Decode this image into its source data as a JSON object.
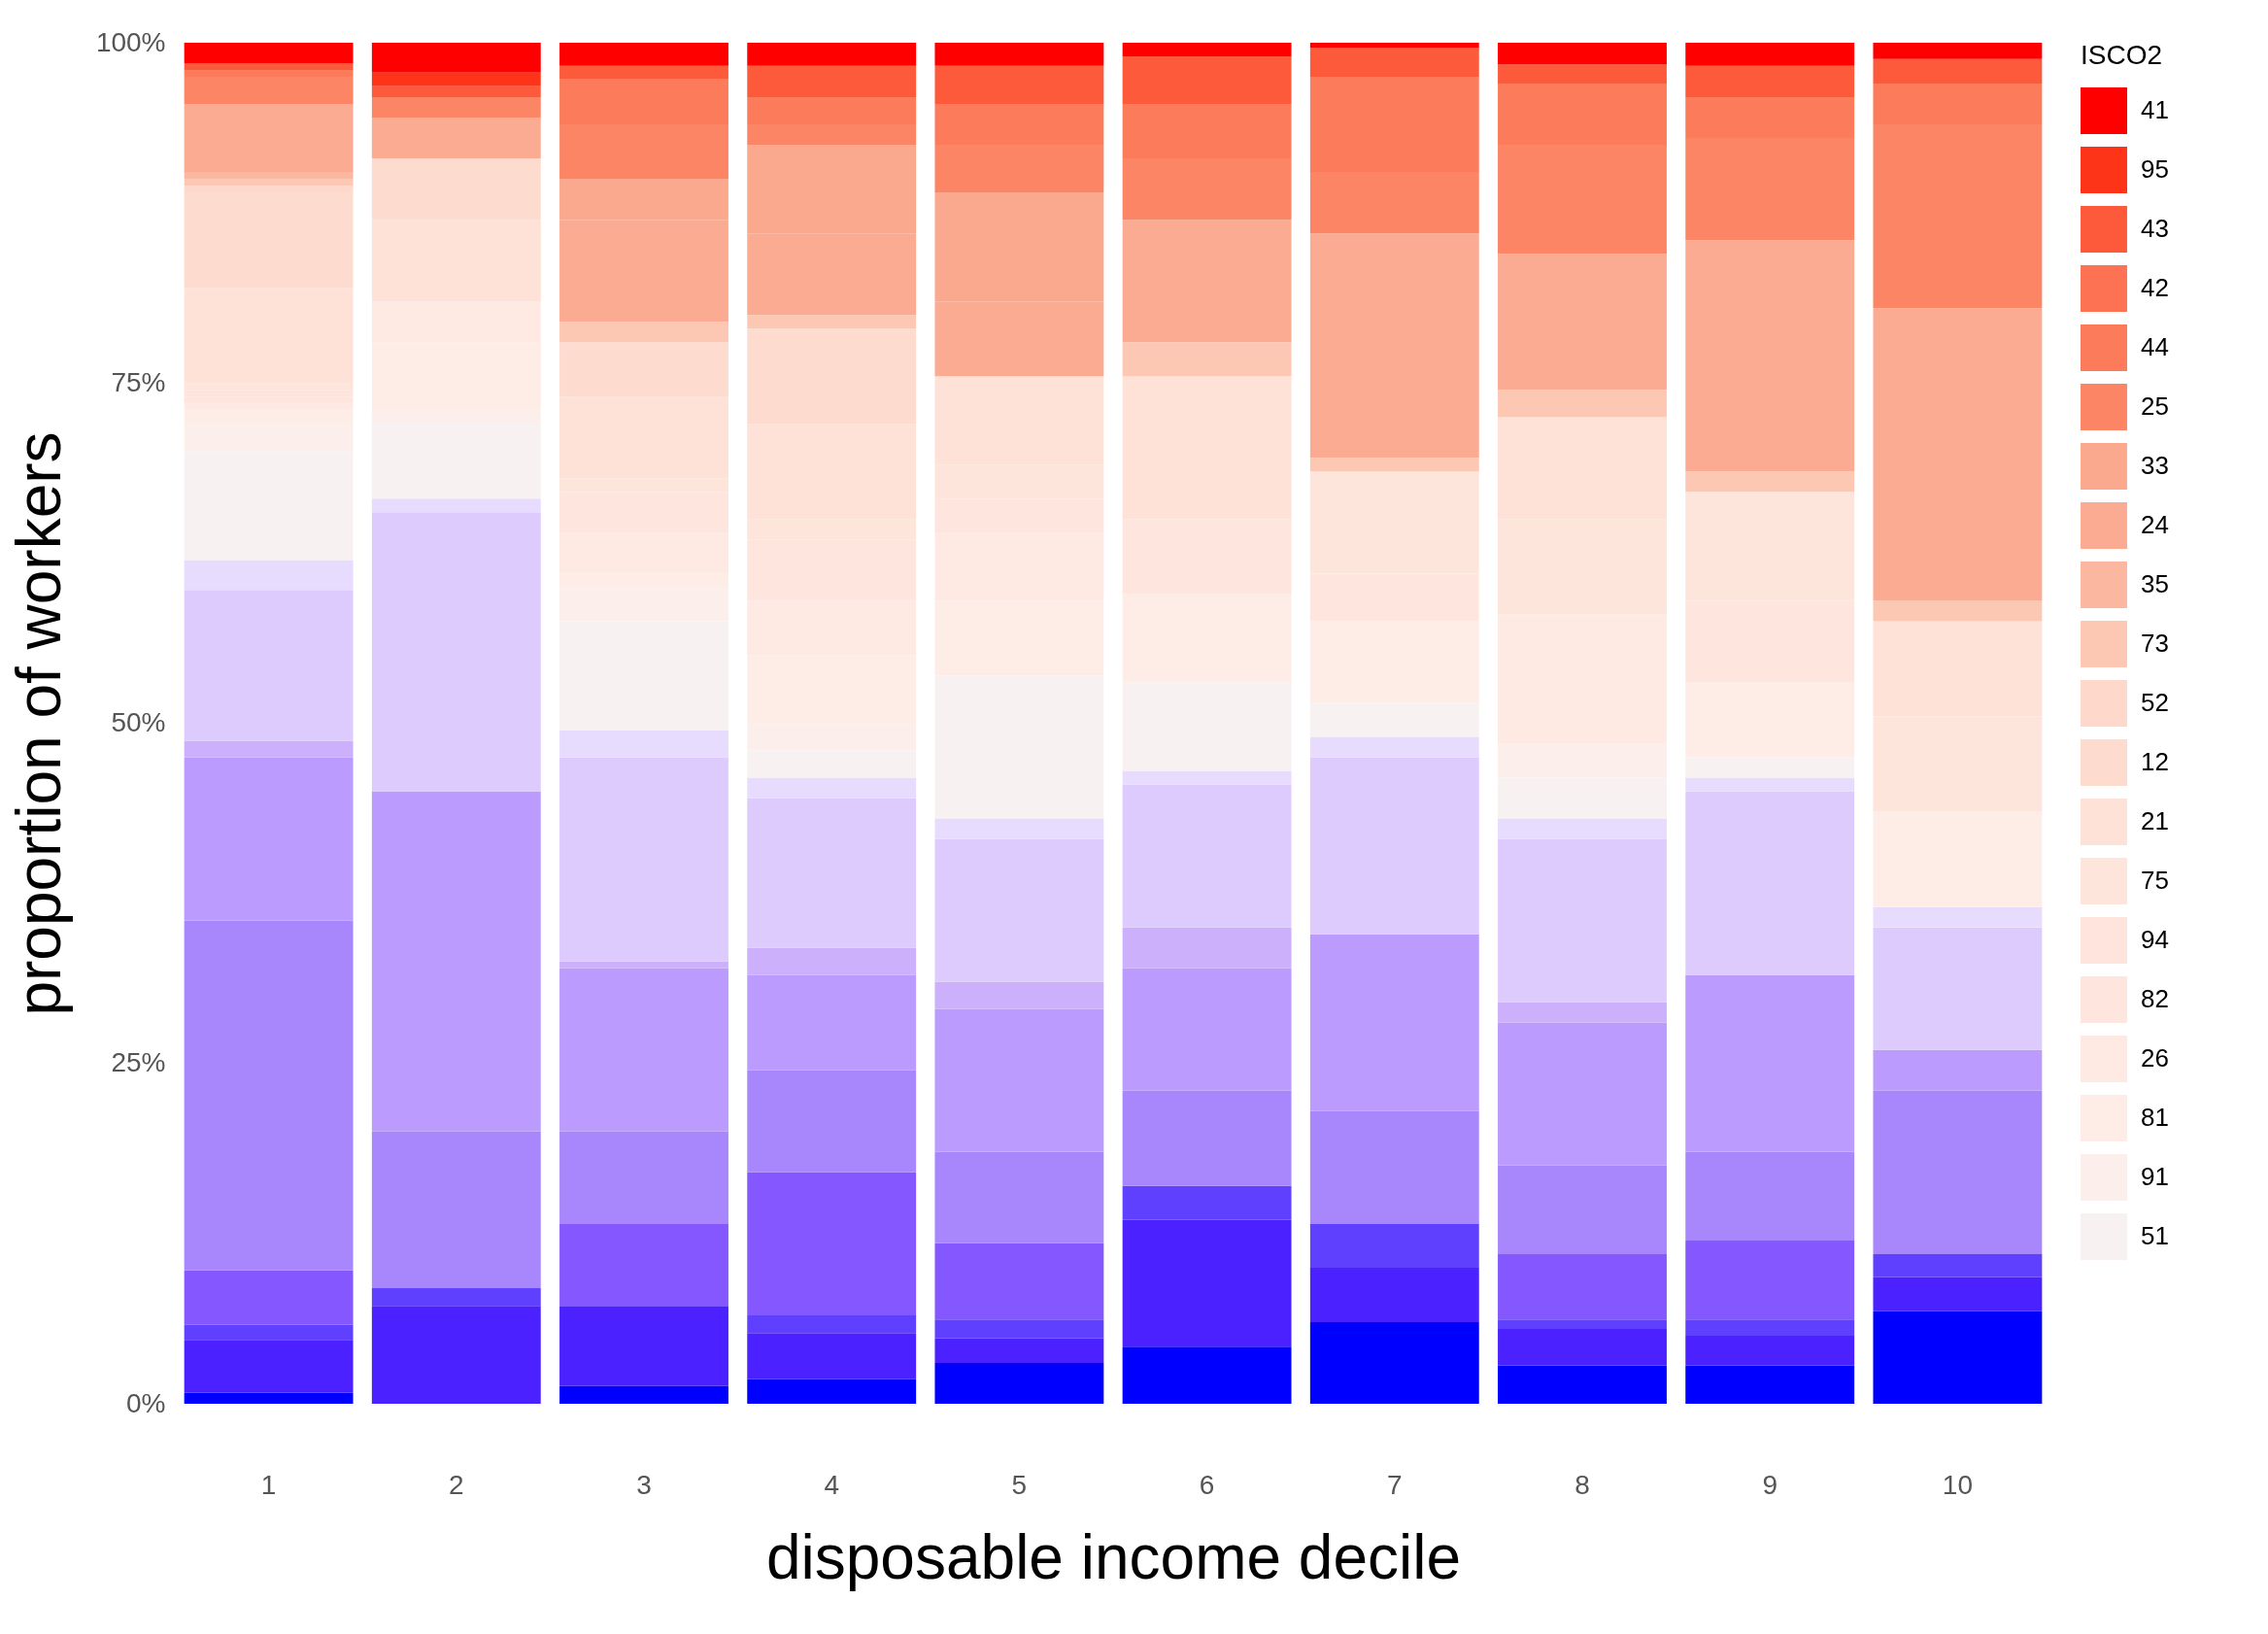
{
  "chart_data": {
    "type": "bar",
    "stacked": true,
    "xlabel": "disposable income decile",
    "ylabel": "proportion of workers",
    "legend_title": "ISCO2",
    "legend": "right",
    "categories": [
      "1",
      "2",
      "3",
      "4",
      "5",
      "6",
      "7",
      "8",
      "9",
      "10"
    ],
    "ylim": [
      0,
      100
    ],
    "yticks": [
      {
        "value": 0,
        "label": "0%"
      },
      {
        "value": 25,
        "label": "25%"
      },
      {
        "value": 50,
        "label": "50%"
      },
      {
        "value": 75,
        "label": "75%"
      },
      {
        "value": 100,
        "label": "100%"
      }
    ],
    "series": [
      {
        "color": "#0000ff",
        "values": [
          0.8,
          0,
          1.3,
          1.8,
          3.0,
          4.2,
          6.0,
          2.8,
          2.8,
          6.8
        ]
      },
      {
        "color": "#4b22ff",
        "values": [
          3.9,
          7.2,
          5.9,
          3.4,
          1.8,
          9.3,
          4,
          2.7,
          2.2,
          2.5
        ]
      },
      {
        "color": "#6040ff",
        "values": [
          1.1,
          1.3,
          0,
          1.3,
          1.4,
          2.5,
          3.2,
          0.7,
          1.2,
          1.7
        ]
      },
      {
        "color": "#8558ff",
        "values": [
          4.0,
          0,
          6,
          10.5,
          5.6,
          0,
          0,
          4.8,
          5.8,
          0
        ]
      },
      {
        "color": "#a886fc",
        "values": [
          25.7,
          11.5,
          6.8,
          7.5,
          6.7,
          7,
          8.3,
          6.5,
          6.5,
          12
        ]
      },
      {
        "color": "#bb9bfd",
        "values": [
          12.0,
          25,
          12,
          7,
          10.5,
          9,
          13,
          10.5,
          13,
          3
        ]
      },
      {
        "color": "#cdb0fb",
        "values": [
          1.2,
          0,
          0.5,
          2,
          2,
          3,
          0,
          1.5,
          0,
          0
        ]
      },
      {
        "color": "#ddcbfe",
        "values": [
          11.1,
          20.5,
          15,
          11,
          10.5,
          10.5,
          13,
          12,
          13.5,
          9
        ]
      },
      {
        "color": "#e8dcfe",
        "values": [
          2.2,
          1,
          2,
          1.5,
          1.5,
          1,
          1.5,
          1.5,
          1,
          1.5
        ]
      },
      {
        "name": "51",
        "color": "#f7f2f1",
        "values": [
          8,
          5.5,
          8,
          2,
          10.5,
          6.5,
          2.5,
          3,
          1.5,
          0
        ]
      },
      {
        "name": "91",
        "color": "#fcefeb",
        "values": [
          2,
          1,
          2.5,
          2,
          0,
          0,
          0,
          2.5,
          0,
          0
        ]
      },
      {
        "name": "81",
        "color": "#feece7",
        "values": [
          1,
          5,
          1,
          5,
          5.5,
          6.5,
          6,
          0,
          5.5,
          7
        ]
      },
      {
        "name": "26",
        "color": "#fee9e3",
        "values": [
          0.5,
          3,
          3,
          4,
          5,
          0,
          0,
          9.5,
          0,
          0
        ]
      },
      {
        "name": "82",
        "color": "#fee6df",
        "values": [
          0.5,
          0,
          3,
          4.5,
          2.5,
          5.5,
          3.5,
          0,
          6,
          0
        ]
      },
      {
        "name": "94",
        "color": "#fee4dc",
        "values": [
          0.5,
          0,
          0,
          0,
          0,
          0,
          0,
          0,
          0,
          0
        ]
      },
      {
        "name": "75",
        "color": "#fee5dc",
        "values": [
          0.5,
          0,
          1,
          1.5,
          2.5,
          0,
          7.5,
          7,
          8,
          7
        ]
      },
      {
        "name": "21",
        "color": "#fee1d7",
        "values": [
          7,
          6,
          6,
          7,
          6.5,
          10.5,
          0,
          7.5,
          0,
          7
        ]
      },
      {
        "name": "12",
        "color": "#fddbcf",
        "values": [
          7,
          4.5,
          4,
          7,
          0,
          0,
          0,
          0,
          0,
          0
        ]
      },
      {
        "name": "52",
        "color": "#fdd8cb",
        "values": [
          0.5,
          0,
          0,
          0,
          0,
          0,
          0,
          0,
          0,
          0
        ]
      },
      {
        "name": "73",
        "color": "#fcc8b4",
        "values": [
          0.5,
          0,
          1.5,
          1,
          0,
          2.5,
          1,
          2,
          1.5,
          1.5
        ]
      },
      {
        "name": "35",
        "color": "#fcb7a0",
        "values": [
          0.5,
          0,
          0,
          0,
          0,
          0,
          0,
          0,
          0,
          0
        ]
      },
      {
        "name": "24",
        "color": "#fbab91",
        "values": [
          5,
          3,
          7.5,
          6,
          5.5,
          9,
          16.5,
          10,
          17,
          21.5
        ]
      },
      {
        "name": "33",
        "color": "#fba98e",
        "values": [
          0,
          0,
          3,
          6.5,
          8,
          0,
          0,
          0,
          0,
          0
        ]
      },
      {
        "name": "25",
        "color": "#fc8566",
        "values": [
          2,
          1.5,
          4,
          1.5,
          3.5,
          4.5,
          4.5,
          8,
          7.5,
          13.5
        ]
      },
      {
        "name": "44",
        "color": "#fc7b5b",
        "values": [
          0.5,
          0,
          3.3,
          2,
          3,
          4,
          7,
          4.5,
          3,
          3
        ]
      },
      {
        "name": "42",
        "color": "#fc7252",
        "values": [
          0,
          0,
          0,
          0,
          0,
          0,
          0,
          0,
          0,
          0
        ]
      },
      {
        "name": "43",
        "color": "#fd5a3c",
        "values": [
          0.5,
          0.8,
          1,
          2.3,
          2.8,
          3.5,
          2.1,
          1.4,
          2.3,
          1.8
        ]
      },
      {
        "name": "95",
        "color": "#fe3419",
        "values": [
          0,
          1,
          0,
          0,
          0,
          0,
          0,
          0,
          0,
          0
        ]
      },
      {
        "name": "41",
        "color": "#ff0000",
        "values": [
          1.5,
          2.2,
          1.7,
          1.7,
          1.7,
          1,
          0.4,
          1.6,
          1.7,
          1.2
        ]
      }
    ]
  }
}
